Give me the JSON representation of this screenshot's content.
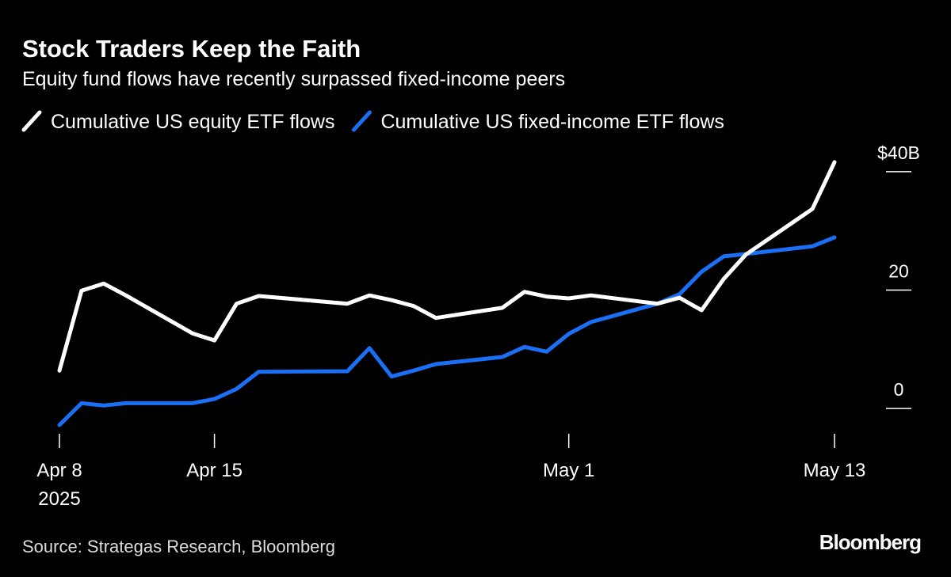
{
  "chart_data": {
    "type": "line",
    "title": "Stock Traders Keep the Faith",
    "subtitle": "Equity fund flows have recently surpassed fixed-income peers",
    "source": "Source: Strategas Research, Bloomberg",
    "brand": "Bloomberg",
    "year_label": "2025",
    "x": [
      "2025-04-08",
      "2025-04-09",
      "2025-04-10",
      "2025-04-11",
      "2025-04-14",
      "2025-04-15",
      "2025-04-16",
      "2025-04-17",
      "2025-04-21",
      "2025-04-22",
      "2025-04-23",
      "2025-04-24",
      "2025-04-25",
      "2025-04-28",
      "2025-04-29",
      "2025-04-30",
      "2025-05-01",
      "2025-05-02",
      "2025-05-05",
      "2025-05-06",
      "2025-05-07",
      "2025-05-08",
      "2025-05-09",
      "2025-05-12",
      "2025-05-13"
    ],
    "series": [
      {
        "name": "Cumulative US equity ETF flows",
        "color": "#ffffff",
        "values": [
          6.4,
          19.9,
          21.1,
          19.1,
          12.7,
          11.5,
          17.7,
          19.0,
          17.7,
          19.1,
          18.3,
          17.3,
          15.3,
          17.0,
          19.7,
          18.9,
          18.6,
          19.1,
          17.7,
          18.7,
          16.6,
          21.9,
          26.0,
          33.7,
          41.6
        ]
      },
      {
        "name": "Cumulative US fixed-income ETF flows",
        "color": "#1a6ff5",
        "values": [
          -2.8,
          0.9,
          0.5,
          0.9,
          0.9,
          1.6,
          3.3,
          6.2,
          6.3,
          10.2,
          5.4,
          6.4,
          7.5,
          8.7,
          10.4,
          9.6,
          12.6,
          14.6,
          17.7,
          19.3,
          23.1,
          25.7,
          26.1,
          27.4,
          28.9
        ]
      }
    ],
    "xlim": [
      "2025-04-08",
      "2025-05-13"
    ],
    "xticks": [
      {
        "value": "2025-04-08",
        "label": "Apr 8"
      },
      {
        "value": "2025-04-15",
        "label": "Apr 15"
      },
      {
        "value": "2025-05-01",
        "label": "May 1"
      },
      {
        "value": "2025-05-13",
        "label": "May 13"
      }
    ],
    "ylim": [
      -4,
      44
    ],
    "yticks": [
      0,
      20,
      {
        "value": 40,
        "label": "$40B"
      }
    ],
    "grid": false
  }
}
